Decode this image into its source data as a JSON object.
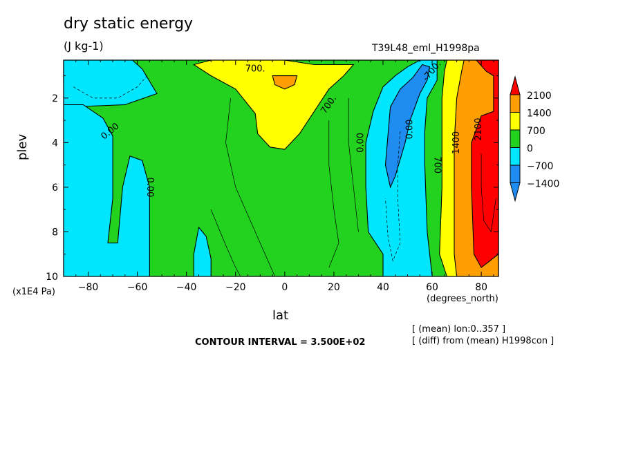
{
  "title": "dry static energy",
  "units": "(J kg-1)",
  "run_label": "T39L48_eml_H1998pa",
  "contour_interval_text": "CONTOUR INTERVAL = 3.500E+02",
  "info_lines": [
    "[ (mean) lon:0..357 ]",
    "[ (diff) from (mean) H1998con ]"
  ],
  "colors": {
    "lt_-1400": "#1e8cf0",
    "-1400_-700": "#1e8cf0",
    "-700_0": "#00e6ff",
    "0_700": "#22d21e",
    "700_1400": "#ffff00",
    "1400_2100": "#ff9e00",
    "gt_2100": "#ff0000"
  },
  "chart_data": {
    "type": "heatmap",
    "title": "dry static energy",
    "subtitle": "(J kg-1)",
    "xlabel": "lat",
    "ylabel": "plev",
    "x_unit_label": "(degrees_north)",
    "y_unit_label": "(x1E4 Pa)",
    "xlim": [
      -90,
      87
    ],
    "ylim": [
      10,
      0.3
    ],
    "x_ticks": [
      -80,
      -60,
      -40,
      -20,
      0,
      20,
      40,
      60,
      80
    ],
    "y_ticks": [
      2,
      4,
      6,
      8,
      10
    ],
    "contour_interval": 350,
    "contour_labels": [
      "700.",
      "700.",
      "-700.",
      "0.00",
      "0.00",
      "0.00",
      "0.00",
      "700",
      "1400",
      "2100"
    ],
    "colorbar": {
      "levels": [
        -1400,
        -700,
        0,
        700,
        1400,
        2100
      ],
      "level_labels": [
        "2100",
        "1400",
        "700",
        "0",
        "-700",
        "-1400"
      ],
      "colors": [
        "#1e8cf0",
        "#1e8cf0",
        "#00e6ff",
        "#22d21e",
        "#ffff00",
        "#ff9e00",
        "#ff0000"
      ]
    },
    "regions": [
      {
        "class": "lt_-1400",
        "points": [
          [
            -90,
            0.4
          ],
          [
            -75,
            0.4
          ],
          [
            -70,
            0.9
          ],
          [
            -72,
            1.4
          ],
          [
            -82,
            1.5
          ],
          [
            -90,
            1.3
          ]
        ]
      },
      {
        "class": "-700_0",
        "points": [
          [
            -90,
            0.3
          ],
          [
            -62,
            0.3
          ],
          [
            -58,
            0.7
          ],
          [
            -52,
            1.8
          ],
          [
            -65,
            2.3
          ],
          [
            -88,
            2.4
          ],
          [
            -90,
            2.3
          ]
        ]
      },
      {
        "class": "-700_0",
        "points": [
          [
            -90,
            2.3
          ],
          [
            -82,
            2.3
          ],
          [
            -74,
            2.9
          ],
          [
            -70,
            3.7
          ],
          [
            -70,
            5.0
          ],
          [
            -70,
            6.5
          ],
          [
            -72,
            8.5
          ],
          [
            -68,
            8.5
          ],
          [
            -66,
            6.0
          ],
          [
            -63,
            4.6
          ],
          [
            -58,
            4.8
          ],
          [
            -55,
            6.0
          ],
          [
            -55,
            8.0
          ],
          [
            -55,
            10
          ],
          [
            -90,
            10
          ]
        ]
      },
      {
        "class": "-700_0",
        "points": [
          [
            -35,
            7.8
          ],
          [
            -32,
            8.2
          ],
          [
            -30,
            9.2
          ],
          [
            -30,
            10
          ],
          [
            -37,
            10
          ],
          [
            -37,
            9.0
          ]
        ]
      },
      {
        "class": "-700_0",
        "points": [
          [
            36,
            2.6
          ],
          [
            40,
            1.5
          ],
          [
            45,
            1.0
          ],
          [
            50,
            0.6
          ],
          [
            55,
            0.3
          ],
          [
            62,
            0.3
          ],
          [
            62,
            1.2
          ],
          [
            58,
            2.0
          ],
          [
            57,
            3.5
          ],
          [
            57,
            5.0
          ],
          [
            58,
            8.0
          ],
          [
            60,
            10
          ],
          [
            40,
            10
          ],
          [
            40,
            9.0
          ],
          [
            34,
            8.0
          ],
          [
            33,
            6.0
          ],
          [
            33,
            4.0
          ]
        ]
      },
      {
        "class": "lt_-1400",
        "points": [
          [
            43,
            2.4
          ],
          [
            47,
            1.6
          ],
          [
            52,
            1.1
          ],
          [
            56,
            0.5
          ],
          [
            59,
            0.6
          ],
          [
            58,
            1.2
          ],
          [
            55,
            1.8
          ],
          [
            51,
            3.0
          ],
          [
            49,
            4.0
          ],
          [
            45,
            5.5
          ],
          [
            43,
            6.0
          ],
          [
            41,
            5.0
          ]
        ]
      },
      {
        "class": "700_1400",
        "points": [
          [
            -37,
            0.5
          ],
          [
            -30,
            0.3
          ],
          [
            0,
            0.3
          ],
          [
            12,
            0.5
          ],
          [
            28,
            0.5
          ],
          [
            24,
            1.0
          ],
          [
            18,
            1.6
          ],
          [
            12,
            2.6
          ],
          [
            6,
            3.6
          ],
          [
            0,
            4.3
          ],
          [
            -6,
            4.2
          ],
          [
            -11,
            3.6
          ],
          [
            -12,
            2.7
          ],
          [
            -20,
            1.6
          ],
          [
            -30,
            1.0
          ]
        ]
      },
      {
        "class": "1400_2100",
        "points": [
          [
            -5,
            1.0
          ],
          [
            5,
            1.0
          ],
          [
            4,
            1.4
          ],
          [
            0,
            1.6
          ],
          [
            -4,
            1.4
          ]
        ]
      },
      {
        "class": "700_1400",
        "points": [
          [
            66,
            0.3
          ],
          [
            87,
            0.3
          ],
          [
            87,
            10
          ],
          [
            66,
            10
          ],
          [
            63,
            9.0
          ],
          [
            64,
            6.0
          ],
          [
            64,
            2.0
          ],
          [
            65,
            0.8
          ]
        ]
      },
      {
        "class": "1400_2100",
        "points": [
          [
            73,
            0.3
          ],
          [
            87,
            0.3
          ],
          [
            87,
            10
          ],
          [
            70,
            10
          ],
          [
            69,
            9.0
          ],
          [
            69,
            7.0
          ],
          [
            69,
            4.0
          ],
          [
            70,
            2.0
          ],
          [
            72,
            0.8
          ]
        ]
      },
      {
        "class": "gt_2100",
        "points": [
          [
            78,
            0.3
          ],
          [
            87,
            0.3
          ],
          [
            87,
            9.0
          ],
          [
            80,
            9.6
          ],
          [
            77,
            9.0
          ],
          [
            76,
            6.0
          ],
          [
            76,
            4.0
          ],
          [
            80,
            2.8
          ],
          [
            85,
            2.6
          ],
          [
            85,
            1.0
          ],
          [
            82,
            0.8
          ]
        ]
      }
    ]
  }
}
